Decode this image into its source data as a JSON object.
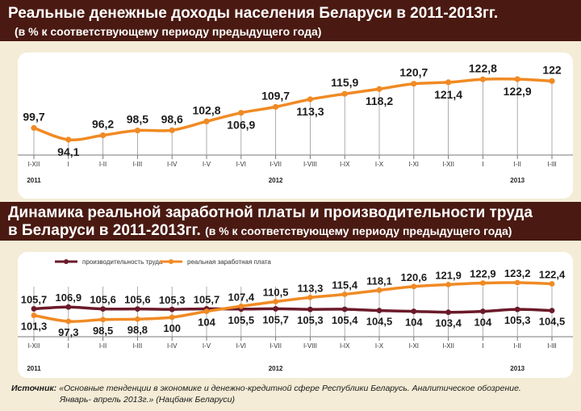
{
  "header1": {
    "title": "Реальные денежные доходы населения Беларуси в 2011-2013гг.",
    "subtitle": "(в % к соответствующему периоду предыдущего года)"
  },
  "header2": {
    "title": "Динамика реальной заработной платы и производительности труда",
    "title_line2": "в Беларуси в 2011-2013гг.",
    "subtitle": "(в % к соответствующему периоду предыдущего года)"
  },
  "source": {
    "label": "Источник:",
    "text_line1": "«Основные тенденции в экономике и денежно-кредитной сфере Республики Беларусь. Аналитическое обозрение.",
    "text_line2": "Январь- апрель 2013г.» (Нацбанк Беларуси)"
  },
  "colors": {
    "banner": "#4a1a12",
    "background": "#f4ecd6",
    "orange": "#f08a24",
    "maroon": "#6b1a2a"
  },
  "chart_data": [
    {
      "type": "line",
      "categories": [
        "I-XII",
        "I",
        "I-II",
        "I-III",
        "I-IV",
        "I-V",
        "I-VI",
        "I-VII",
        "I-VIII",
        "I-IX",
        "I-X",
        "I-XI",
        "I-XII",
        "I",
        "I-II",
        "I-III"
      ],
      "year_labels": [
        {
          "label": "2011",
          "at": 0
        },
        {
          "label": "2012",
          "at": 7
        },
        {
          "label": "2013",
          "at": 14
        }
      ],
      "series": [
        {
          "values": [
            99.7,
            94.1,
            96.2,
            98.5,
            98.6,
            102.8,
            106.9,
            109.7,
            113.3,
            115.9,
            118.2,
            120.7,
            121.4,
            122.8,
            122.9,
            122
          ],
          "color": "#f08a24"
        }
      ],
      "labels": [
        "99,7",
        "94,1",
        "96,2",
        "98,5",
        "98,6",
        "102,8",
        "106,9",
        "109,7",
        "113,3",
        "115,9",
        "118,2",
        "120,7",
        "121,4",
        "122,8",
        "122,9",
        "122"
      ],
      "ylim": [
        92,
        125
      ]
    },
    {
      "type": "line",
      "categories": [
        "I-XII",
        "I",
        "I-II",
        "I-III",
        "I-IV",
        "I-V",
        "I-VI",
        "I-VII",
        "I-VIII",
        "I-IX",
        "I-X",
        "I-XI",
        "I-XII",
        "I",
        "I-II",
        "I-III"
      ],
      "year_labels": [
        {
          "label": "2011",
          "at": 0
        },
        {
          "label": "2012",
          "at": 7
        },
        {
          "label": "2013",
          "at": 14
        }
      ],
      "series": [
        {
          "name": "производительность труда",
          "color": "#6b1a2a",
          "values": [
            105.7,
            106.9,
            105.6,
            105.6,
            105.3,
            105.7,
            105.5,
            105.7,
            105.3,
            105.4,
            104.5,
            104,
            103.4,
            104,
            105.3,
            104.5
          ],
          "labels": [
            "105,7",
            "106,9",
            "105,6",
            "105,6",
            "105,3",
            "105,7",
            "105,5",
            "105,7",
            "105,3",
            "105,4",
            "104,5",
            "104",
            "103,4",
            "104",
            "105,3",
            "104,5"
          ]
        },
        {
          "name": "реальная заработная плата",
          "color": "#f08a24",
          "values": [
            101.3,
            97.3,
            98.5,
            98.8,
            100,
            104,
            107.4,
            110.5,
            113.3,
            115.4,
            118.1,
            120.6,
            121.9,
            122.9,
            123.2,
            122.4
          ],
          "labels": [
            "101,3",
            "97,3",
            "98,5",
            "98,8",
            "100",
            "104",
            "107,4",
            "110,5",
            "113,3",
            "115,4",
            "118,1",
            "120,6",
            "121,9",
            "122,9",
            "123,2",
            "122,4"
          ]
        }
      ],
      "legend_position": "top-left"
    }
  ]
}
